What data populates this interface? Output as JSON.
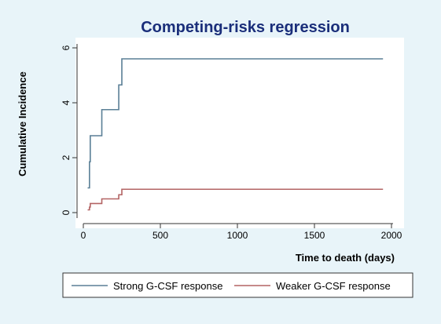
{
  "chart_data": {
    "type": "line",
    "title": "Competing-risks regression",
    "xlabel": "Time to death (days)",
    "ylabel": "Cumulative Incidence",
    "xlim": [
      0,
      2000
    ],
    "ylim": [
      0,
      6
    ],
    "x_ticks": [
      0,
      500,
      1000,
      1500,
      2000
    ],
    "y_ticks": [
      0,
      2,
      4,
      6
    ],
    "grid": false,
    "step": true,
    "legend_position": "bottom",
    "series": [
      {
        "name": "Strong G-CSF response",
        "color": "#5a7f96",
        "x": [
          28,
          40,
          45,
          120,
          230,
          250,
          1945
        ],
        "y": [
          0.9,
          1.85,
          2.8,
          3.75,
          4.65,
          5.6,
          5.6
        ]
      },
      {
        "name": "Weaker G-CSF response",
        "color": "#b36464",
        "x": [
          28,
          40,
          45,
          120,
          230,
          250,
          1945
        ],
        "y": [
          0.1,
          0.2,
          0.33,
          0.5,
          0.65,
          0.85,
          0.85
        ]
      }
    ]
  },
  "style": {
    "background": "#e8f4f9",
    "plot_background": "#ffffff",
    "title_color": "#1a2e7a"
  }
}
